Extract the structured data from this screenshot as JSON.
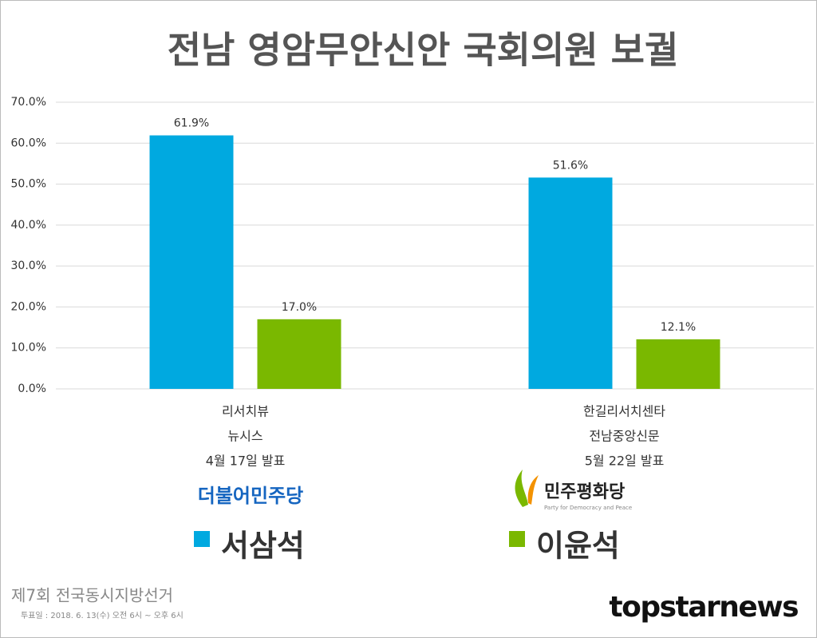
{
  "chart_data": {
    "type": "bar",
    "title": "전남 영암무안신안 국회의원 보궐",
    "categories": [
      [
        "리서치뷰",
        "뉴시스",
        "4월 17일 발표"
      ],
      [
        "한길리서치센타",
        "전남중앙신문",
        "5월 22일 발표"
      ]
    ],
    "series": [
      {
        "name": "서삼석",
        "color": "#00a9e0",
        "values": [
          61.9,
          51.6
        ],
        "value_labels": [
          "61.9%",
          "51.6%"
        ]
      },
      {
        "name": "이윤석",
        "color": "#7ab800",
        "values": [
          17.0,
          12.1
        ],
        "value_labels": [
          "17.0%",
          "12.1%"
        ]
      }
    ],
    "ylim": [
      0,
      70
    ],
    "yticks": [
      {
        "value": 0,
        "label": "0.0%"
      },
      {
        "value": 10,
        "label": "10.0%"
      },
      {
        "value": 20,
        "label": "20.0%"
      },
      {
        "value": 30,
        "label": "30.0%"
      },
      {
        "value": 40,
        "label": "40.0%"
      },
      {
        "value": 50,
        "label": "50.0%"
      },
      {
        "value": 60,
        "label": "60.0%"
      },
      {
        "value": 70,
        "label": "70.0%"
      }
    ],
    "grid": true
  },
  "logos": {
    "left": "더불어민주당",
    "right": "민주평화당",
    "right_sub": "Party for Democracy and Peace"
  },
  "footer": {
    "event": "제7회 전국동시지방선거",
    "date": "투표일 : 2018. 6. 13(수) 오전 6시 ~ 오후 6시",
    "brand": "topstarnews"
  }
}
